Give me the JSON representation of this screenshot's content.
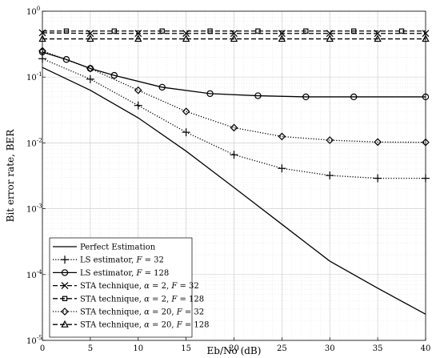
{
  "chart_data": {
    "type": "line",
    "xlabel": "Eb/No (dB)",
    "ylabel": "Bit error rate, BER",
    "xlim": [
      0,
      40
    ],
    "ylim": [
      1e-05,
      1
    ],
    "yscale": "log",
    "grid": true,
    "minor_grid": true,
    "legend_position": "bottom-left",
    "x_ticks": [
      "0",
      "5",
      "10",
      "15",
      "20",
      "25",
      "30",
      "35",
      "40"
    ],
    "x_tick_values": [
      0,
      5,
      10,
      15,
      20,
      25,
      30,
      35,
      40
    ],
    "y_ticks": [
      {
        "base": "10",
        "exp": "-5",
        "value": 1e-05
      },
      {
        "base": "10",
        "exp": "-4",
        "value": 0.0001
      },
      {
        "base": "10",
        "exp": "-3",
        "value": 0.001
      },
      {
        "base": "10",
        "exp": "-2",
        "value": 0.01
      },
      {
        "base": "10",
        "exp": "-1",
        "value": 0.1
      },
      {
        "base": "10",
        "exp": "0",
        "value": 1
      }
    ],
    "series": [
      {
        "name": "Perfect Estimation",
        "style": "solid",
        "marker": "none",
        "x": [
          0,
          5,
          10,
          15,
          20,
          25,
          30,
          35,
          40
        ],
        "y": [
          0.14,
          0.063,
          0.024,
          0.0075,
          0.0021,
          0.00058,
          0.00016,
          6.2e-05,
          2.5e-05
        ]
      },
      {
        "name": "LS estimator, F = 32",
        "label_parts": [
          "LS estimator, ",
          "F",
          " = 32"
        ],
        "style": "dotted",
        "marker": "plus",
        "x": [
          0,
          5,
          10,
          15,
          20,
          25,
          30,
          35,
          40
        ],
        "y": [
          0.19,
          0.093,
          0.037,
          0.0145,
          0.0066,
          0.0041,
          0.0032,
          0.0029,
          0.0029
        ]
      },
      {
        "name": "LS estimator, F = 128",
        "label_parts": [
          "LS estimator, ",
          "F",
          " = 128"
        ],
        "style": "solid",
        "marker": "circle",
        "x": [
          0,
          2.5,
          5,
          7.5,
          12.5,
          17.5,
          22.5,
          27.5,
          32.5,
          40
        ],
        "y": [
          0.24,
          0.185,
          0.135,
          0.106,
          0.07,
          0.056,
          0.052,
          0.05,
          0.05,
          0.05
        ]
      },
      {
        "name": "STA technique, α = 2, F = 32",
        "label_parts": [
          "STA technique, ",
          "α",
          " = 2, ",
          "F",
          " = 32"
        ],
        "style": "dashed",
        "marker": "x",
        "x": [
          0,
          5,
          10,
          15,
          20,
          25,
          30,
          35,
          40
        ],
        "y": [
          0.47,
          0.46,
          0.46,
          0.46,
          0.46,
          0.46,
          0.46,
          0.46,
          0.46
        ]
      },
      {
        "name": "STA technique, α = 2, F = 128",
        "label_parts": [
          "STA technique, ",
          "α",
          " = 2, ",
          "F",
          " = 128"
        ],
        "style": "dashed",
        "marker": "square",
        "x": [
          2.5,
          7.5,
          12.5,
          17.5,
          22.5,
          27.5,
          32.5,
          37.5
        ],
        "y": [
          0.5,
          0.5,
          0.5,
          0.5,
          0.5,
          0.5,
          0.5,
          0.5
        ]
      },
      {
        "name": "STA technique, α = 20, F = 32",
        "label_parts": [
          "STA technique, ",
          "α",
          " = 20, ",
          "F",
          " = 32"
        ],
        "style": "dotted",
        "marker": "diamond",
        "x": [
          0,
          5,
          10,
          15,
          20,
          25,
          30,
          35,
          40
        ],
        "y": [
          0.25,
          0.135,
          0.063,
          0.03,
          0.017,
          0.0125,
          0.011,
          0.0103,
          0.0102
        ]
      },
      {
        "name": "STA technique, α = 20, F = 128",
        "label_parts": [
          "STA technique, ",
          "α",
          " = 20, ",
          "F",
          " = 128"
        ],
        "style": "dashed",
        "marker": "triangle",
        "x": [
          0,
          5,
          10,
          15,
          20,
          25,
          30,
          35,
          40
        ],
        "y": [
          0.38,
          0.38,
          0.38,
          0.38,
          0.38,
          0.38,
          0.38,
          0.38,
          0.38
        ]
      }
    ]
  }
}
